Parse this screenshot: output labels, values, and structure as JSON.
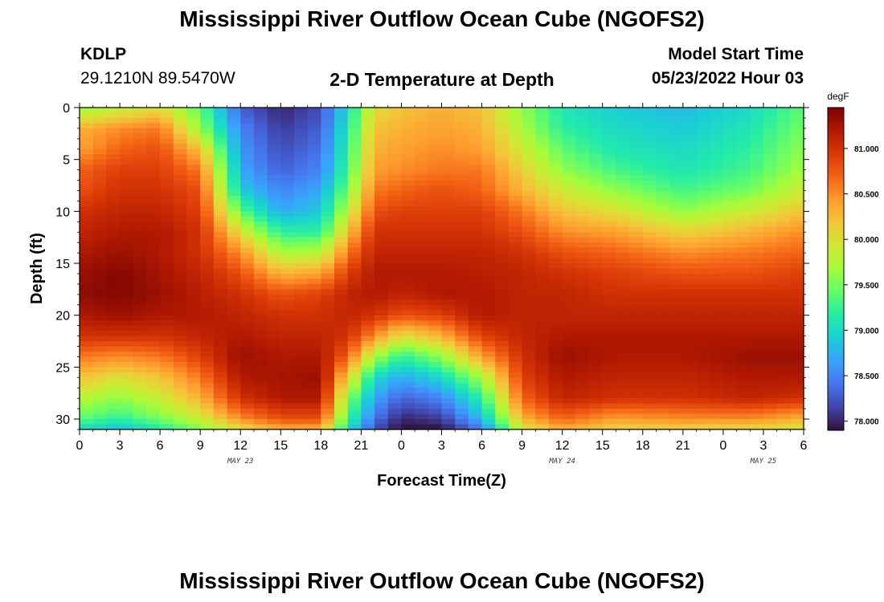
{
  "page": {
    "title": "Mississippi River Outflow Ocean Cube (NGOFS2)",
    "bottom_title": "Mississippi River Outflow Ocean Cube (NGOFS2)",
    "station_id": "KDLP",
    "station_coords": "29.1210N  89.5470W",
    "subtitle": "2-D Temperature at Depth",
    "model_start_label": "Model Start Time",
    "model_start_value": "05/23/2022 Hour 03"
  },
  "colors": {
    "text": "#000000",
    "axis": "#000000"
  },
  "chart_data": {
    "type": "heatmap",
    "title": "2-D Temperature at Depth",
    "xlabel": "Forecast Time(Z)",
    "ylabel": "Depth (ft)",
    "x_unit": "forecast hour from 00Z May 23",
    "x_range": [
      0,
      54
    ],
    "y_range": [
      0,
      31
    ],
    "y_inverted": true,
    "x_tick_values": [
      0,
      3,
      6,
      9,
      12,
      15,
      18,
      21,
      24,
      27,
      30,
      33,
      36,
      39,
      42,
      45,
      48,
      51,
      54
    ],
    "x_tick_labels": [
      "0",
      "3",
      "6",
      "9",
      "12",
      "15",
      "18",
      "21",
      "0",
      "3",
      "6",
      "9",
      "12",
      "15",
      "18",
      "21",
      "0",
      "3",
      "6"
    ],
    "y_tick_values": [
      0,
      5,
      10,
      15,
      20,
      25,
      30
    ],
    "y_tick_labels": [
      "0",
      "5",
      "10",
      "15",
      "20",
      "25",
      "30"
    ],
    "date_labels": [
      {
        "x": 12,
        "text": "MAY 23"
      },
      {
        "x": 36,
        "text": "MAY 24"
      },
      {
        "x": 51,
        "text": "MAY 25"
      }
    ],
    "colorbar": {
      "unit": "degF",
      "min": 77.9,
      "max": 81.45,
      "tick_values": [
        78.0,
        78.5,
        79.0,
        79.5,
        80.0,
        80.5,
        81.0
      ],
      "tick_labels": [
        "78.000",
        "78.500",
        "79.000",
        "79.500",
        "80.000",
        "80.500",
        "81.000"
      ],
      "colormap": [
        "#30123b",
        "#4145ab",
        "#4675ed",
        "#39a2fc",
        "#1bcfd4",
        "#24eca6",
        "#61fc6c",
        "#a4fc3b",
        "#d1e834",
        "#f3c63a",
        "#fe9b2d",
        "#f36315",
        "#d93806",
        "#b11901",
        "#7a0403"
      ]
    },
    "grid": {
      "x_values": [
        0,
        1,
        2,
        3,
        4,
        5,
        6,
        7,
        8,
        9,
        10,
        11,
        12,
        13,
        14,
        15,
        16,
        17,
        18,
        19,
        20,
        21,
        22,
        23,
        24,
        25,
        26,
        27,
        28,
        29,
        30,
        31,
        32,
        33,
        34,
        35,
        36,
        37,
        38,
        39,
        40,
        41,
        42,
        43,
        44,
        45,
        46,
        47,
        48,
        49,
        50,
        51,
        52,
        53,
        54
      ],
      "depth_values": [
        0,
        2,
        4,
        6,
        8,
        10,
        12,
        14,
        16,
        18,
        20,
        22,
        24,
        26,
        28,
        30,
        31
      ],
      "anchors": [
        {
          "x": 0,
          "values": [
            79.6,
            80.3,
            80.4,
            80.7,
            80.8,
            81.0,
            81.1,
            81.2,
            81.3,
            81.35,
            81.2,
            81.0,
            80.6,
            80.2,
            79.8,
            79.4,
            79.0
          ]
        },
        {
          "x": 3,
          "values": [
            79.8,
            80.5,
            80.7,
            80.9,
            81.0,
            81.1,
            81.2,
            81.3,
            81.4,
            81.4,
            81.3,
            81.0,
            80.5,
            80.0,
            79.6,
            79.2,
            78.8
          ]
        },
        {
          "x": 6,
          "values": [
            80.0,
            80.6,
            80.8,
            80.9,
            81.0,
            81.1,
            81.2,
            81.2,
            81.25,
            81.3,
            81.2,
            81.0,
            80.6,
            80.2,
            79.9,
            79.5,
            79.1
          ]
        },
        {
          "x": 9,
          "values": [
            79.4,
            79.6,
            80.2,
            80.6,
            80.8,
            80.9,
            81.0,
            81.0,
            81.1,
            81.15,
            81.2,
            81.1,
            80.9,
            80.6,
            80.3,
            79.9,
            79.5
          ]
        },
        {
          "x": 12,
          "values": [
            78.3,
            78.5,
            78.6,
            78.7,
            78.9,
            79.4,
            80.0,
            80.5,
            80.8,
            81.0,
            81.1,
            81.2,
            81.3,
            81.2,
            81.0,
            80.5,
            80.0
          ]
        },
        {
          "x": 15,
          "values": [
            78.0,
            78.1,
            78.2,
            78.3,
            78.5,
            78.7,
            79.2,
            79.7,
            80.3,
            80.8,
            81.0,
            81.1,
            81.2,
            81.25,
            81.2,
            80.8,
            80.3
          ]
        },
        {
          "x": 18,
          "values": [
            78.2,
            78.3,
            78.4,
            78.5,
            78.7,
            78.9,
            79.2,
            79.8,
            80.4,
            80.9,
            81.0,
            81.1,
            81.2,
            81.3,
            81.2,
            80.8,
            80.3
          ]
        },
        {
          "x": 20,
          "values": [
            79.0,
            79.1,
            79.2,
            79.3,
            79.5,
            79.8,
            80.2,
            80.6,
            80.9,
            81.1,
            81.1,
            81.0,
            80.7,
            80.1,
            79.6,
            79.3,
            79.0
          ]
        },
        {
          "x": 22,
          "values": [
            80.0,
            80.2,
            80.3,
            80.4,
            80.6,
            80.8,
            81.0,
            81.1,
            81.2,
            81.2,
            81.0,
            80.5,
            79.7,
            79.0,
            78.7,
            78.4,
            78.2
          ]
        },
        {
          "x": 24,
          "values": [
            80.2,
            80.3,
            80.4,
            80.5,
            80.7,
            80.9,
            81.0,
            81.1,
            81.2,
            81.1,
            80.8,
            80.0,
            79.2,
            78.7,
            78.3,
            78.0,
            77.9
          ]
        },
        {
          "x": 27,
          "values": [
            80.3,
            80.4,
            80.5,
            80.6,
            80.8,
            80.9,
            81.0,
            81.1,
            81.2,
            81.2,
            80.9,
            80.3,
            79.6,
            79.0,
            78.5,
            78.1,
            77.9
          ]
        },
        {
          "x": 30,
          "values": [
            80.2,
            80.3,
            80.4,
            80.6,
            80.7,
            80.9,
            81.0,
            81.1,
            81.15,
            81.2,
            81.2,
            80.9,
            80.4,
            79.7,
            79.2,
            78.8,
            78.4
          ]
        },
        {
          "x": 33,
          "values": [
            79.6,
            79.7,
            79.9,
            80.1,
            80.3,
            80.6,
            80.8,
            81.0,
            81.1,
            81.1,
            81.1,
            81.1,
            81.0,
            80.9,
            80.7,
            80.3,
            79.9
          ]
        },
        {
          "x": 36,
          "values": [
            79.1,
            79.2,
            79.4,
            79.6,
            79.9,
            80.2,
            80.5,
            80.8,
            81.0,
            81.1,
            81.1,
            81.2,
            81.3,
            81.2,
            81.1,
            80.7,
            80.3
          ]
        },
        {
          "x": 40,
          "values": [
            78.9,
            79.0,
            79.1,
            79.3,
            79.6,
            80.0,
            80.4,
            80.7,
            80.9,
            81.0,
            81.1,
            81.2,
            81.2,
            81.1,
            81.0,
            80.4,
            80.1
          ]
        },
        {
          "x": 45,
          "values": [
            78.8,
            78.9,
            79.0,
            79.1,
            79.3,
            79.6,
            80.1,
            80.5,
            80.8,
            81.0,
            81.1,
            81.2,
            81.2,
            81.1,
            81.0,
            80.5,
            80.1
          ]
        },
        {
          "x": 50,
          "values": [
            79.0,
            79.1,
            79.2,
            79.3,
            79.5,
            79.9,
            80.3,
            80.6,
            80.8,
            81.0,
            81.1,
            81.2,
            81.3,
            81.2,
            81.1,
            80.5,
            80.0
          ]
        },
        {
          "x": 54,
          "values": [
            79.4,
            79.5,
            79.6,
            79.7,
            79.9,
            80.2,
            80.5,
            80.7,
            80.9,
            81.0,
            81.1,
            81.2,
            81.3,
            81.2,
            81.0,
            80.3,
            79.9
          ]
        }
      ]
    }
  }
}
